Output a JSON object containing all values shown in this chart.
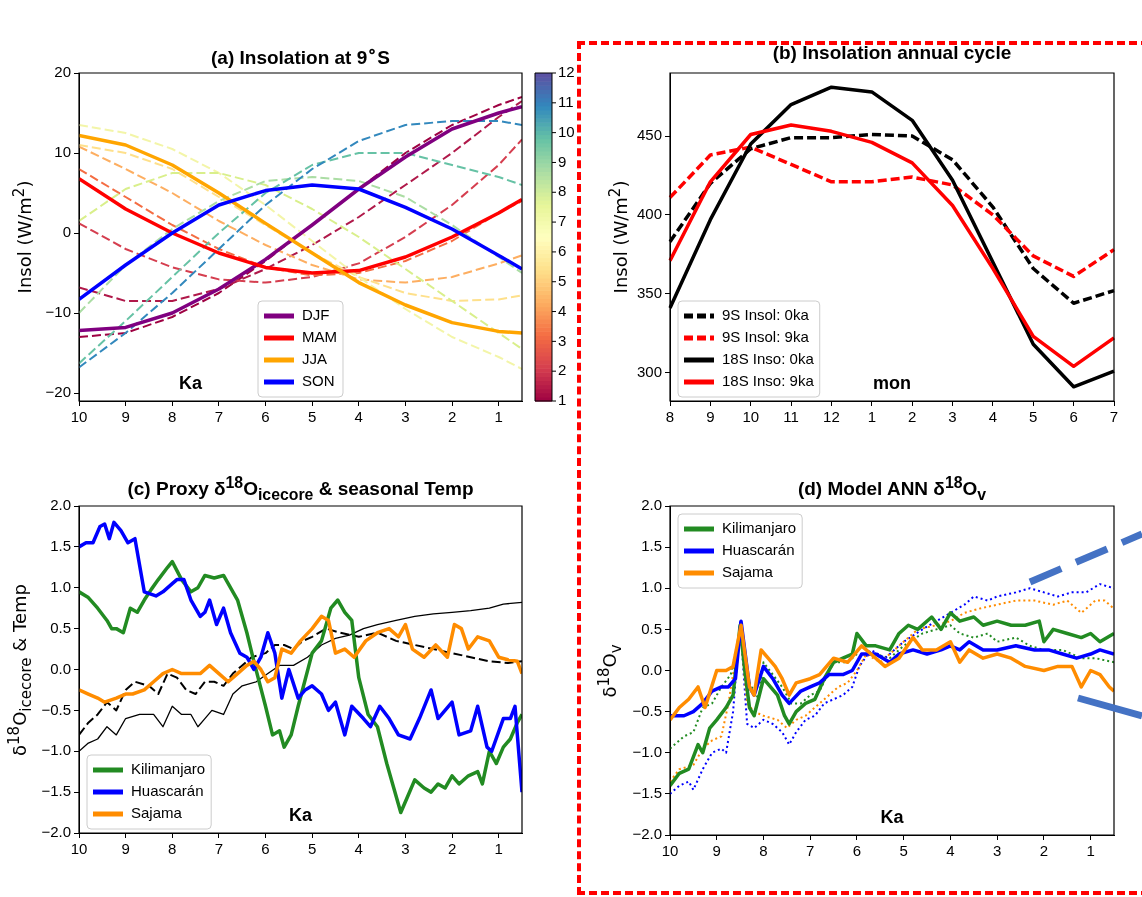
{
  "chart_data": [
    {
      "type": "line",
      "title": "(a) Insolation at 9$^{∘}$S",
      "ylabel": "Insol (W/m$^{2}$)",
      "xlabel": "Ka",
      "x": [
        10,
        9,
        8,
        7,
        6,
        5,
        4,
        3,
        2,
        1,
        0.5
      ],
      "xlim": [
        10,
        0.5
      ],
      "xticks": [
        10,
        9,
        8,
        7,
        6,
        5,
        4,
        3,
        2,
        1
      ],
      "ylim": [
        -21,
        20
      ],
      "yticks": [
        {
          "value": -20,
          "label": "−20"
        },
        {
          "value": -10,
          "label": "−10"
        },
        0,
        10,
        20
      ],
      "legend": "bottom",
      "marker": "none",
      "clim": [
        1,
        12
      ],
      "cticks": [
        1,
        2,
        3,
        4,
        5,
        6,
        7,
        8,
        9,
        10,
        11,
        12
      ],
      "series": [
        {
          "color": "#9e0142",
          "line_style": "dashed",
          "values": [
            -13,
            -12.5,
            -10.5,
            -7.5,
            -3.5,
            1,
            5.5,
            10,
            13.5,
            16,
            17
          ]
        },
        {
          "color": "#b0194a",
          "line_style": "dashed",
          "values": [
            -6.8,
            -8.5,
            -8.5,
            -7,
            -4.5,
            -1.5,
            2,
            6,
            10,
            14.5,
            16.5
          ]
        },
        {
          "color": "#d53e4f",
          "line_style": "dashed",
          "values": [
            1.2,
            -2,
            -4.3,
            -5.8,
            -6.2,
            -5.5,
            -3.8,
            -0.5,
            3.5,
            8.5,
            11.7
          ]
        },
        {
          "color": "#f46d43",
          "line_style": "dashed",
          "values": [
            8,
            4.5,
            1,
            -2,
            -4.3,
            -5.3,
            -5,
            -3.5,
            -1,
            2.5,
            4
          ]
        },
        {
          "color": "#fdae61",
          "line_style": "dashed",
          "values": [
            10.8,
            8,
            5,
            1.5,
            -1.5,
            -4,
            -5.8,
            -6.2,
            -5.5,
            -3.8,
            -2.8
          ]
        },
        {
          "color": "#fee08b",
          "line_style": "dashed",
          "values": [
            11,
            10,
            8,
            4.5,
            1,
            -2.5,
            -5.5,
            -7.5,
            -8.5,
            -8.3,
            -7.8
          ]
        },
        {
          "color": "#f3f5a8",
          "line_style": "dashed",
          "values": [
            13.5,
            12.5,
            10.5,
            7.5,
            3.5,
            -1,
            -5.5,
            -9.5,
            -13,
            -15.5,
            -17
          ]
        },
        {
          "color": "#d9ef8b",
          "line_style": "dashed",
          "values": [
            1.5,
            5.5,
            7.5,
            7.5,
            6,
            3,
            -0.5,
            -4.5,
            -8.5,
            -12.5,
            -14.5
          ]
        },
        {
          "color": "#abdda4",
          "line_style": "dashed",
          "values": [
            -10,
            -4,
            0.5,
            4,
            6.5,
            7,
            6.5,
            4.5,
            1,
            -3,
            -5
          ]
        },
        {
          "color": "#66c2a5",
          "line_style": "dashed",
          "values": [
            -16.3,
            -11,
            -5.5,
            0,
            5,
            8.5,
            10,
            10,
            8.5,
            7,
            6
          ]
        },
        {
          "color": "#3288bd",
          "line_style": "dashed",
          "values": [
            -16.8,
            -12.5,
            -7.5,
            -2,
            3.5,
            8,
            11.5,
            13.5,
            14,
            14,
            13.5
          ]
        },
        {
          "name": "DJF",
          "color": "#800080",
          "values": [
            -12.2,
            -11.8,
            -10,
            -7,
            -3.3,
            1,
            5.5,
            9.5,
            13,
            15,
            15.8
          ]
        },
        {
          "name": "MAM",
          "color": "#ff0000",
          "values": [
            6.8,
            3,
            0,
            -2.5,
            -4.3,
            -5,
            -4.7,
            -3,
            -0.5,
            2.5,
            4.2
          ]
        },
        {
          "name": "JJA",
          "color": "#ffa500",
          "values": [
            12.2,
            11,
            8.5,
            5,
            1.2,
            -2.5,
            -6.2,
            -9,
            -11.2,
            -12.3,
            -12.5
          ]
        },
        {
          "name": "SON",
          "color": "#0000ff",
          "values": [
            -8.3,
            -4,
            0,
            3.5,
            5.3,
            6,
            5.5,
            3.2,
            0.5,
            -2.8,
            -4.5
          ]
        }
      ]
    },
    {
      "type": "line",
      "title": "(b) Insolation annual cycle",
      "ylabel": "Insol (W/m$^{2}$)",
      "xlabel": "mon",
      "categories": [
        "8",
        "9",
        "10",
        "11",
        "12",
        "1",
        "2",
        "3",
        "4",
        "5",
        "6",
        "7"
      ],
      "ylim": [
        282,
        490
      ],
      "yticks": [
        300,
        350,
        400,
        450
      ],
      "legend": "bottom left",
      "marker": "none",
      "series": [
        {
          "name": "9S Insol: 0ka",
          "color": "#000000",
          "line_style": "dashed",
          "values": [
            383,
            420,
            442,
            449,
            449,
            451,
            450,
            435,
            405,
            366,
            344,
            352
          ]
        },
        {
          "name": "9S Insol: 9ka",
          "color": "#ff0000",
          "line_style": "dashed",
          "values": [
            411,
            438,
            443,
            432,
            421,
            421,
            424,
            419,
            400,
            374,
            361,
            378
          ]
        },
        {
          "name": "18S Inso: 0ka",
          "color": "#000000",
          "line_style": "solid",
          "values": [
            341,
            397,
            445,
            470,
            481,
            478,
            460,
            422,
            370,
            318,
            291,
            301
          ]
        },
        {
          "name": "18S Inso: 9ka",
          "color": "#ff0000",
          "line_style": "solid",
          "values": [
            371,
            421,
            451,
            457,
            453,
            446,
            433,
            406,
            366,
            323,
            304,
            322
          ]
        }
      ]
    },
    {
      "type": "line",
      "title": "(c) Proxy δ$^{18}$O$_{icecore}$ & seasonal Temp",
      "ylabel": "δ$^{18}$O$_{icecore}$ & Temp",
      "xlabel": "Ka",
      "xlim": [
        10,
        0.5
      ],
      "xticks": [
        10,
        9,
        8,
        7,
        6,
        5,
        4,
        3,
        2,
        1
      ],
      "ylim": [
        -2,
        2
      ],
      "yticks": [
        {
          "value": -2,
          "label": "−2.0"
        },
        {
          "value": -1.5,
          "label": "−1.5"
        },
        {
          "value": -1,
          "label": "−1.0"
        },
        {
          "value": -0.5,
          "label": "−0.5"
        },
        {
          "value": 0,
          "label": "0.0"
        },
        {
          "value": 0.5,
          "label": "0.5"
        },
        {
          "value": 1,
          "label": "1.0"
        },
        {
          "value": 1.5,
          "label": "1.5"
        },
        {
          "value": 2,
          "label": "2.0"
        }
      ],
      "legend": "bottom left",
      "marker": "none",
      "series": [
        {
          "color": "#000000",
          "line_style": "solid",
          "x": [
            10,
            9.8,
            9.6,
            9.4,
            9.2,
            9.0,
            8.7,
            8.4,
            8.2,
            8.0,
            7.8,
            7.6,
            7.45,
            7.3,
            7.15,
            6.9,
            6.7,
            6.5,
            6.2,
            5.95,
            5.7,
            5.4,
            5.1,
            4.8,
            4.5,
            4.2,
            3.9,
            3.6,
            3.2,
            2.8,
            2.4,
            2.0,
            1.6,
            1.2,
            0.9,
            0.5
          ],
          "values": [
            -1.0,
            -0.9,
            -0.85,
            -0.7,
            -0.8,
            -0.6,
            -0.55,
            -0.55,
            -0.7,
            -0.45,
            -0.55,
            -0.55,
            -0.7,
            -0.6,
            -0.5,
            -0.55,
            -0.3,
            -0.2,
            -0.15,
            -0.05,
            0.05,
            0.05,
            0.15,
            0.3,
            0.38,
            0.42,
            0.5,
            0.55,
            0.6,
            0.65,
            0.68,
            0.7,
            0.72,
            0.75,
            0.8,
            0.82
          ]
        },
        {
          "color": "#000000",
          "line_style": "dashed",
          "x": [
            10,
            9.8,
            9.6,
            9.4,
            9.2,
            9.0,
            8.8,
            8.5,
            8.3,
            8.1,
            7.9,
            7.7,
            7.5,
            7.3,
            7.1,
            6.9,
            6.7,
            6.5,
            6.3,
            6.0,
            5.8,
            5.6,
            5.4,
            5.2,
            5.0,
            4.7,
            4.4,
            4.0,
            3.6,
            3.2,
            2.8,
            2.4,
            2.0,
            1.6,
            1.2,
            0.8,
            0.5
          ],
          "values": [
            -0.8,
            -0.65,
            -0.55,
            -0.4,
            -0.5,
            -0.25,
            -0.15,
            -0.2,
            -0.3,
            -0.05,
            -0.1,
            -0.25,
            -0.3,
            -0.15,
            -0.15,
            -0.2,
            -0.05,
            0.05,
            0.15,
            0.2,
            0.3,
            0.3,
            0.25,
            0.35,
            0.4,
            0.5,
            0.45,
            0.4,
            0.45,
            0.35,
            0.3,
            0.25,
            0.2,
            0.15,
            0.1,
            0.08,
            0.1
          ]
        },
        {
          "name": "Kilimanjaro",
          "color": "#228b22",
          "x": [
            10,
            9.8,
            9.6,
            9.4,
            9.3,
            9.2,
            9.05,
            8.9,
            8.75,
            8.6,
            8.45,
            8.3,
            8.1,
            8.0,
            7.8,
            7.6,
            7.45,
            7.3,
            7.1,
            6.9,
            6.8,
            6.6,
            6.4,
            6.25,
            6.0,
            5.85,
            5.7,
            5.6,
            5.45,
            5.3,
            5.0,
            4.8,
            4.6,
            4.45,
            4.3,
            4.15,
            4.0,
            3.8,
            3.6,
            3.4,
            3.25,
            3.1,
            2.95,
            2.8,
            2.6,
            2.45,
            2.3,
            2.15,
            2.0,
            1.85,
            1.65,
            1.45,
            1.35,
            1.2,
            1.05,
            0.9,
            0.75,
            0.6,
            0.5
          ],
          "values": [
            0.95,
            0.88,
            0.75,
            0.6,
            0.5,
            0.5,
            0.45,
            0.75,
            0.7,
            0.85,
            0.98,
            1.1,
            1.25,
            1.32,
            1.1,
            0.95,
            1.0,
            1.15,
            1.12,
            1.15,
            1.05,
            0.85,
            0.45,
            0.1,
            -0.45,
            -0.8,
            -0.75,
            -0.95,
            -0.8,
            -0.45,
            0.2,
            0.35,
            0.75,
            0.85,
            0.7,
            0.6,
            -0.1,
            -0.55,
            -0.7,
            -1.15,
            -1.45,
            -1.75,
            -1.55,
            -1.35,
            -1.45,
            -1.5,
            -1.4,
            -1.45,
            -1.3,
            -1.4,
            -1.3,
            -1.25,
            -1.4,
            -1.0,
            -1.15,
            -0.95,
            -0.85,
            -0.65,
            -0.55
          ]
        },
        {
          "name": "Huascarán",
          "color": "#0000ff",
          "x": [
            10,
            9.85,
            9.7,
            9.55,
            9.45,
            9.35,
            9.25,
            9.1,
            8.95,
            8.8,
            8.6,
            8.35,
            8.2,
            8.0,
            7.9,
            7.75,
            7.6,
            7.4,
            7.3,
            7.2,
            7.05,
            6.9,
            6.75,
            6.55,
            6.4,
            6.25,
            6.1,
            5.95,
            5.8,
            5.65,
            5.5,
            5.3,
            5.15,
            5.0,
            4.8,
            4.65,
            4.5,
            4.3,
            4.15,
            3.9,
            3.75,
            3.55,
            3.35,
            3.15,
            2.9,
            2.7,
            2.45,
            2.3,
            2.0,
            1.85,
            1.6,
            1.45,
            1.25,
            1.15,
            0.9,
            0.75,
            0.65,
            0.5
          ],
          "values": [
            1.5,
            1.55,
            1.55,
            1.75,
            1.78,
            1.6,
            1.8,
            1.7,
            1.55,
            1.6,
            0.95,
            0.9,
            0.95,
            1.05,
            1.1,
            1.1,
            0.85,
            0.65,
            0.7,
            0.85,
            0.55,
            0.75,
            0.45,
            0.2,
            0.15,
            0.0,
            0.15,
            0.45,
            0.2,
            -0.35,
            0.0,
            -0.35,
            -0.25,
            -0.2,
            -0.3,
            -0.5,
            -0.4,
            -0.8,
            -0.45,
            -0.6,
            -0.7,
            -0.45,
            -0.6,
            -0.8,
            -0.85,
            -0.6,
            -0.25,
            -0.6,
            -0.4,
            -0.8,
            -0.75,
            -0.45,
            -0.95,
            -1.0,
            -0.6,
            -0.6,
            -0.45,
            -1.5
          ]
        },
        {
          "name": "Sajama",
          "color": "#ff8c00",
          "x": [
            10,
            9.8,
            9.6,
            9.45,
            9.2,
            9.0,
            8.85,
            8.6,
            8.4,
            8.2,
            8.0,
            7.8,
            7.6,
            7.4,
            7.2,
            7.0,
            6.8,
            6.6,
            6.4,
            6.25,
            6.1,
            5.95,
            5.8,
            5.65,
            5.45,
            5.25,
            5.0,
            4.8,
            4.65,
            4.5,
            4.3,
            4.1,
            3.85,
            3.6,
            3.35,
            3.15,
            3.0,
            2.85,
            2.6,
            2.35,
            2.1,
            1.95,
            1.8,
            1.65,
            1.45,
            1.2,
            1.0,
            0.8,
            0.6,
            0.5
          ],
          "values": [
            -0.25,
            -0.3,
            -0.35,
            -0.4,
            -0.35,
            -0.3,
            -0.3,
            -0.25,
            -0.15,
            -0.05,
            0.0,
            -0.05,
            -0.05,
            -0.05,
            0.05,
            -0.05,
            -0.15,
            -0.05,
            0.05,
            0.1,
            0.0,
            -0.15,
            -0.1,
            0.25,
            0.2,
            0.35,
            0.5,
            0.65,
            0.6,
            0.2,
            0.25,
            0.15,
            0.35,
            0.45,
            0.5,
            0.4,
            0.55,
            0.25,
            0.15,
            0.3,
            0.15,
            0.55,
            0.5,
            0.25,
            0.4,
            0.35,
            0.15,
            0.12,
            0.1,
            -0.05
          ]
        }
      ]
    },
    {
      "type": "line",
      "title": "(d) Model ANN δ$^{18}$O$_{v}$",
      "ylabel": "δ$^{18}$O$_{v}$",
      "xlabel": "Ka",
      "xlim": [
        10,
        0.5
      ],
      "xticks": [
        10,
        9,
        8,
        7,
        6,
        5,
        4,
        3,
        2,
        1
      ],
      "ylim": [
        -2,
        2
      ],
      "yticks": [
        {
          "value": -2,
          "label": "−2.0"
        },
        {
          "value": -1.5,
          "label": "−1.5"
        },
        {
          "value": -1,
          "label": "−1.0"
        },
        {
          "value": -0.5,
          "label": "−0.5"
        },
        {
          "value": 0,
          "label": "0.0"
        },
        {
          "value": 0.5,
          "label": "0.5"
        },
        {
          "value": 1,
          "label": "1.0"
        },
        {
          "value": 1.5,
          "label": "1.5"
        },
        {
          "value": 2,
          "label": "2.0"
        }
      ],
      "legend": "top left",
      "marker": "none",
      "series": [
        {
          "color": "#228b22",
          "line_style": "dotted",
          "x": [
            10,
            9.7,
            9.5,
            9.3,
            9.1,
            8.9,
            8.7,
            8.5,
            8.3,
            8.1,
            8.0,
            7.8,
            7.6,
            7.4,
            7.2,
            7.0,
            6.8,
            6.5,
            6.2,
            6.0,
            5.6,
            5.3,
            5.0,
            4.6,
            4.3,
            4.0,
            3.8,
            3.5,
            3.2,
            3.0,
            2.6,
            2.3,
            2.0,
            1.6,
            1.2,
            0.9,
            0.5
          ],
          "values": [
            -0.95,
            -0.8,
            -0.75,
            -0.45,
            -0.4,
            -0.2,
            -0.05,
            0.5,
            -0.15,
            -0.35,
            0.1,
            -0.05,
            -0.2,
            -0.4,
            -0.4,
            -0.3,
            -0.25,
            0.1,
            0.1,
            0.2,
            0.2,
            0.15,
            0.3,
            0.45,
            0.5,
            0.55,
            0.45,
            0.4,
            0.45,
            0.35,
            0.4,
            0.3,
            0.25,
            0.25,
            0.15,
            0.15,
            0.1
          ]
        },
        {
          "color": "#0000ff",
          "line_style": "dotted",
          "x": [
            10,
            9.8,
            9.6,
            9.5,
            9.3,
            9.1,
            8.9,
            8.8,
            8.65,
            8.5,
            8.35,
            8.2,
            8.0,
            7.8,
            7.6,
            7.45,
            7.3,
            7.1,
            6.9,
            6.7,
            6.5,
            6.3,
            6.1,
            5.95,
            5.7,
            5.4,
            5.0,
            4.6,
            4.3,
            4.0,
            3.7,
            3.5,
            3.2,
            3.0,
            2.6,
            2.3,
            2.0,
            1.7,
            1.4,
            1.1,
            0.8,
            0.5
          ],
          "values": [
            -1.5,
            -1.4,
            -1.35,
            -1.45,
            -1.2,
            -1.0,
            -0.95,
            -1.0,
            -0.5,
            0.6,
            -0.65,
            -0.7,
            -0.6,
            -0.65,
            -0.75,
            -0.9,
            -0.75,
            -0.6,
            -0.55,
            -0.4,
            -0.35,
            -0.3,
            -0.2,
            0.05,
            0.25,
            0.15,
            0.35,
            0.5,
            0.6,
            0.7,
            0.8,
            0.9,
            0.85,
            0.9,
            0.95,
            1.0,
            0.95,
            0.9,
            0.95,
            0.95,
            1.05,
            1.0
          ]
        },
        {
          "color": "#ff8c00",
          "line_style": "dotted",
          "x": [
            10,
            9.8,
            9.5,
            9.3,
            9.1,
            8.9,
            8.75,
            8.5,
            8.35,
            8.2,
            8.0,
            7.7,
            7.5,
            7.3,
            7.1,
            6.9,
            6.6,
            6.4,
            6.2,
            6.0,
            5.8,
            5.5,
            5.1,
            4.7,
            4.3,
            4.0,
            3.7,
            3.4,
            3.0,
            2.6,
            2.2,
            1.8,
            1.5,
            1.2,
            0.9,
            0.7,
            0.5
          ],
          "values": [
            -1.35,
            -1.2,
            -1.15,
            -0.95,
            -0.85,
            -0.8,
            -0.4,
            0.5,
            -0.4,
            -0.5,
            -0.55,
            -0.6,
            -0.7,
            -0.6,
            -0.55,
            -0.45,
            -0.3,
            -0.2,
            -0.15,
            0.0,
            0.2,
            0.1,
            0.3,
            0.5,
            0.55,
            0.6,
            0.7,
            0.75,
            0.8,
            0.85,
            0.85,
            0.8,
            0.85,
            0.7,
            0.85,
            0.85,
            0.75
          ]
        },
        {
          "name": "Kilimanjaro",
          "color": "#228b22",
          "x": [
            10,
            9.8,
            9.6,
            9.4,
            9.3,
            9.15,
            9.0,
            8.8,
            8.65,
            8.5,
            8.4,
            8.3,
            8.2,
            8.0,
            7.85,
            7.7,
            7.55,
            7.45,
            7.3,
            7.1,
            6.9,
            6.7,
            6.5,
            6.3,
            6.1,
            6.0,
            5.8,
            5.6,
            5.3,
            5.1,
            4.9,
            4.7,
            4.4,
            4.2,
            4.0,
            3.8,
            3.5,
            3.3,
            3.0,
            2.7,
            2.4,
            2.1,
            2.0,
            1.8,
            1.5,
            1.2,
            1.0,
            0.8,
            0.5
          ],
          "values": [
            -1.4,
            -1.25,
            -1.2,
            -0.9,
            -1.0,
            -0.7,
            -0.6,
            -0.45,
            -0.3,
            0.55,
            0.0,
            -0.45,
            -0.55,
            -0.1,
            -0.2,
            -0.3,
            -0.55,
            -0.65,
            -0.5,
            -0.4,
            -0.35,
            -0.1,
            0.1,
            0.15,
            0.2,
            0.45,
            0.3,
            0.3,
            0.25,
            0.45,
            0.55,
            0.5,
            0.65,
            0.5,
            0.7,
            0.6,
            0.65,
            0.55,
            0.6,
            0.55,
            0.55,
            0.6,
            0.35,
            0.5,
            0.45,
            0.4,
            0.45,
            0.35,
            0.45
          ]
        },
        {
          "name": "Huascarán",
          "color": "#0000ff",
          "x": [
            10,
            9.7,
            9.5,
            9.3,
            9.1,
            8.9,
            8.75,
            8.6,
            8.48,
            8.3,
            8.2,
            8.0,
            7.8,
            7.6,
            7.45,
            7.2,
            7.0,
            6.8,
            6.6,
            6.3,
            6.1,
            5.9,
            5.6,
            5.3,
            5.1,
            4.8,
            4.5,
            4.2,
            4.0,
            3.8,
            3.6,
            3.3,
            3.0,
            2.6,
            2.2,
            1.9,
            1.6,
            1.3,
            1.0,
            0.8,
            0.5
          ],
          "values": [
            -0.55,
            -0.55,
            -0.5,
            -0.4,
            -0.25,
            -0.2,
            -0.2,
            -0.1,
            0.6,
            -0.2,
            -0.3,
            0.05,
            -0.1,
            -0.3,
            -0.4,
            -0.25,
            -0.2,
            -0.15,
            -0.05,
            -0.05,
            0.0,
            0.2,
            0.2,
            0.1,
            0.2,
            0.25,
            0.2,
            0.25,
            0.3,
            0.25,
            0.35,
            0.25,
            0.25,
            0.3,
            0.25,
            0.25,
            0.2,
            0.15,
            0.2,
            0.25,
            0.2
          ]
        },
        {
          "name": "Sajama",
          "color": "#ff8c00",
          "x": [
            10,
            9.8,
            9.6,
            9.4,
            9.25,
            9.0,
            8.8,
            8.65,
            8.48,
            8.3,
            8.2,
            8.05,
            7.9,
            7.75,
            7.6,
            7.45,
            7.3,
            7.0,
            6.8,
            6.5,
            6.2,
            5.9,
            5.7,
            5.4,
            5.1,
            4.8,
            4.6,
            4.3,
            4.0,
            3.8,
            3.6,
            3.3,
            3.0,
            2.7,
            2.4,
            2.0,
            1.7,
            1.4,
            1.2,
            1.0,
            0.8,
            0.6,
            0.5
          ],
          "values": [
            -0.6,
            -0.45,
            -0.35,
            -0.2,
            -0.45,
            0.0,
            0.0,
            0.05,
            0.55,
            -0.2,
            -0.3,
            0.25,
            0.15,
            0.05,
            -0.1,
            -0.3,
            -0.15,
            -0.1,
            -0.05,
            0.15,
            0.1,
            0.3,
            0.2,
            0.05,
            0.15,
            0.4,
            0.25,
            0.25,
            0.35,
            0.1,
            0.25,
            0.15,
            0.2,
            0.15,
            0.05,
            0.0,
            0.05,
            0.05,
            -0.2,
            0.0,
            -0.05,
            -0.2,
            -0.25
          ]
        }
      ]
    }
  ]
}
